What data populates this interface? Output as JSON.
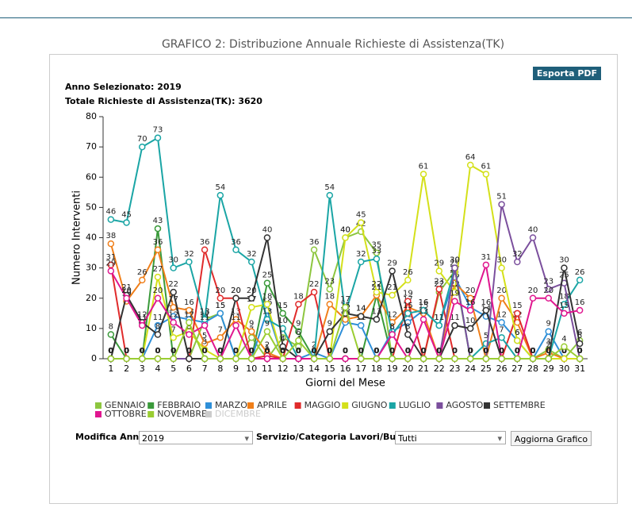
{
  "header": {
    "title": "GRAFICO 2: Distribuzione Annuale Richieste di Assistenza(TK)"
  },
  "export_button": "Esporta PDF",
  "info": {
    "year": "Anno Selezionato: 2019",
    "total": "Totale Richieste di Assistenza(TK): 3620"
  },
  "chart_data": {
    "type": "line",
    "xlabel": "Giorni del Mese",
    "ylabel": "Numero Interventi",
    "categories": [
      "1",
      "2",
      "3",
      "4",
      "5",
      "6",
      "7",
      "8",
      "9",
      "10",
      "11",
      "12",
      "13",
      "14",
      "15",
      "16",
      "17",
      "18",
      "19",
      "20",
      "21",
      "22",
      "23",
      "24",
      "25",
      "26",
      "27",
      "28",
      "29",
      "30",
      "31"
    ],
    "ylim": [
      0,
      80
    ],
    "yticks": [
      0,
      10,
      20,
      30,
      40,
      50,
      60,
      70,
      80
    ],
    "series": [
      {
        "name": "GENNAIO",
        "color": "#8dc63f",
        "values": [
          0,
          0,
          0,
          0,
          0,
          0,
          13,
          15,
          0,
          7,
          0,
          7,
          4,
          36,
          23,
          40,
          42,
          35,
          0,
          0,
          0,
          22,
          29,
          0,
          0,
          0,
          0,
          0,
          3,
          0,
          6
        ]
      },
      {
        "name": "FEBBRAIO",
        "color": "#3a9a3a",
        "values": [
          8,
          0,
          0,
          43,
          0,
          0,
          0,
          0,
          0,
          0,
          25,
          15,
          9,
          0,
          0,
          0,
          0,
          21,
          0,
          0,
          0,
          0,
          0,
          0,
          0,
          0,
          0,
          0,
          0,
          0,
          0
        ]
      },
      {
        "name": "MARZO",
        "color": "#2e8fd8",
        "values": [
          0,
          0,
          0,
          11,
          14,
          13,
          12,
          15,
          0,
          0,
          16,
          0,
          0,
          2,
          0,
          12,
          11,
          0,
          9,
          12,
          16,
          11,
          27,
          17,
          14,
          12,
          6,
          0,
          9,
          0,
          0
        ]
      },
      {
        "name": "APRILE",
        "color": "#f07f1a",
        "values": [
          38,
          19,
          26,
          36,
          17,
          16,
          5,
          7,
          13,
          9,
          2,
          0,
          0,
          0,
          18,
          13,
          14,
          21,
          12,
          17,
          15,
          0,
          25,
          20,
          0,
          20,
          12,
          0,
          2,
          0,
          0
        ]
      },
      {
        "name": "MAGGIO",
        "color": "#e02b2b",
        "values": [
          31,
          0,
          0,
          0,
          0,
          0,
          36,
          20,
          20,
          0,
          1,
          0,
          18,
          22,
          0,
          0,
          0,
          0,
          0,
          19,
          0,
          23,
          0,
          0,
          0,
          0,
          15,
          0,
          0,
          0,
          0
        ]
      },
      {
        "name": "GIUGNO",
        "color": "#d4e01a",
        "values": [
          0,
          0,
          0,
          27,
          7,
          9,
          3,
          0,
          0,
          17,
          18,
          0,
          0,
          0,
          0,
          40,
          45,
          22,
          21,
          26,
          61,
          29,
          22,
          64,
          61,
          30,
          6,
          0,
          0,
          0,
          0
        ]
      },
      {
        "name": "LUGLIO",
        "color": "#1aa5a5",
        "values": [
          46,
          45,
          70,
          73,
          30,
          32,
          13,
          54,
          36,
          32,
          13,
          10,
          0,
          0,
          54,
          15,
          32,
          33,
          8,
          15,
          16,
          11,
          30,
          0,
          5,
          7,
          0,
          0,
          0,
          18,
          26
        ]
      },
      {
        "name": "AGOSTO",
        "color": "#7b4f9d",
        "values": [
          0,
          0,
          0,
          0,
          0,
          0,
          0,
          0,
          0,
          0,
          0,
          0,
          0,
          0,
          0,
          0,
          0,
          0,
          0,
          0,
          0,
          0,
          30,
          0,
          0,
          51,
          32,
          40,
          23,
          25,
          0
        ]
      },
      {
        "name": "SETTEMBRE",
        "color": "#333333",
        "values": [
          0,
          21,
          12,
          8,
          22,
          0,
          0,
          0,
          20,
          20,
          40,
          4,
          0,
          0,
          9,
          15,
          14,
          13,
          29,
          8,
          0,
          0,
          11,
          10,
          16,
          0,
          0,
          0,
          0,
          30,
          5
        ]
      },
      {
        "name": "OTTOBRE",
        "color": "#e0168f",
        "values": [
          29,
          20,
          11,
          20,
          12,
          8,
          11,
          0,
          11,
          0,
          0,
          0,
          0,
          0,
          0,
          0,
          0,
          0,
          8,
          0,
          13,
          0,
          19,
          16,
          31,
          0,
          0,
          20,
          20,
          15,
          16
        ]
      },
      {
        "name": "NOVEMBRE",
        "color": "#9acd32",
        "values": [
          0,
          0,
          0,
          0,
          0,
          12,
          0,
          0,
          0,
          0,
          9,
          0,
          6,
          0,
          0,
          17,
          0,
          0,
          0,
          0,
          0,
          0,
          0,
          0,
          0,
          0,
          0,
          0,
          0,
          4,
          0
        ]
      },
      {
        "name": "DICEMBRE",
        "color": "#cccccc",
        "hidden": true
      }
    ]
  },
  "controls": {
    "year_label": "Modifica Anno:",
    "year_value": "2019",
    "service_label": "Servizio/Categoria Lavori/Bucket:",
    "service_value": "Tutti",
    "update_button": "Aggiorna Grafico"
  }
}
